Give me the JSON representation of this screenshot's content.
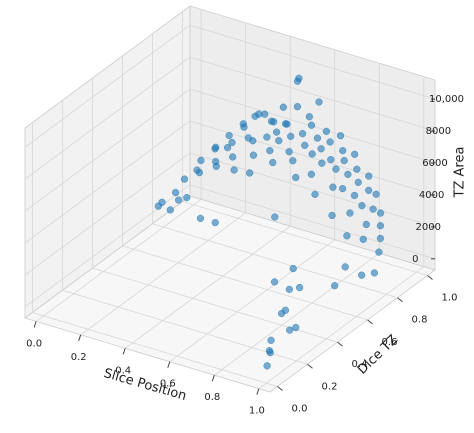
{
  "chart_data": {
    "type": "scatter3d",
    "xlabel": "Slice Position",
    "ylabel": "Dice TZ",
    "zlabel": "TZ Area",
    "color": "#1f77b4",
    "grid": true,
    "xlim": [
      -0.05,
      1.05
    ],
    "ylim": [
      -0.05,
      1.05
    ],
    "zlim": [
      -700,
      11200
    ],
    "xticks": [
      {
        "value": 0,
        "label": "0.0"
      },
      0.2,
      0.4,
      0.6,
      0.8,
      {
        "value": 1,
        "label": "1.0"
      }
    ],
    "yticks": [
      {
        "value": 0,
        "label": "0.0"
      },
      0.2,
      0.4,
      0.6,
      0.8,
      {
        "value": 1,
        "label": "1.0"
      }
    ],
    "zticks": [
      0,
      2000,
      4000,
      6000,
      8000,
      {
        "value": 10000,
        "label": "10,000"
      }
    ],
    "x": [
      0.02,
      0.03,
      0.05,
      0.08,
      0.1,
      0.12,
      0.15,
      0.15,
      0.18,
      0.2,
      0.22,
      0.24,
      0.25,
      0.27,
      0.28,
      0.3,
      0.31,
      0.33,
      0.34,
      0.35,
      0.36,
      0.38,
      0.39,
      0.4,
      0.41,
      0.42,
      0.43,
      0.44,
      0.45,
      0.46,
      0.47,
      0.48,
      0.49,
      0.5,
      0.5,
      0.51,
      0.52,
      0.53,
      0.54,
      0.55,
      0.56,
      0.57,
      0.58,
      0.59,
      0.6,
      0.61,
      0.62,
      0.63,
      0.64,
      0.65,
      0.66,
      0.67,
      0.68,
      0.69,
      0.7,
      0.71,
      0.72,
      0.73,
      0.74,
      0.75,
      0.76,
      0.77,
      0.78,
      0.79,
      0.8,
      0.81,
      0.82,
      0.83,
      0.84,
      0.85,
      0.86,
      0.87,
      0.88,
      0.89,
      0.9,
      0.91,
      0.92,
      0.93,
      0.94,
      0.95,
      0.96,
      0.97,
      0.98,
      0.99,
      1.0,
      0.85,
      0.9,
      0.92,
      0.95,
      0.98,
      0.88,
      0.8,
      0.93,
      0.97,
      0.75,
      0.7,
      0.99,
      0.0,
      0.01,
      0.06,
      0.3,
      0.4,
      0.6
    ],
    "y": [
      0.85,
      0.8,
      0.88,
      0.82,
      0.9,
      0.86,
      0.92,
      0.8,
      0.88,
      0.85,
      0.91,
      0.87,
      0.78,
      0.93,
      0.84,
      0.89,
      0.8,
      0.92,
      0.86,
      0.75,
      0.9,
      0.83,
      0.94,
      0.88,
      0.79,
      0.91,
      0.85,
      0.72,
      0.93,
      0.87,
      0.81,
      0.9,
      0.84,
      0.95,
      0.88,
      0.77,
      0.92,
      0.86,
      0.9,
      0.82,
      0.94,
      0.88,
      0.8,
      0.91,
      0.85,
      0.93,
      0.76,
      0.89,
      0.84,
      0.92,
      0.87,
      0.79,
      0.9,
      0.83,
      0.94,
      0.86,
      0.74,
      0.91,
      0.85,
      0.89,
      0.8,
      0.93,
      0.87,
      0.82,
      0.9,
      0.72,
      0.88,
      0.84,
      0.92,
      0.78,
      0.89,
      0.83,
      0.91,
      0.7,
      0.86,
      0.8,
      0.88,
      0.75,
      0.85,
      0.6,
      0.82,
      0.5,
      0.78,
      0.65,
      0.72,
      0.35,
      0.25,
      0.15,
      0.1,
      0.05,
      0.4,
      0.45,
      0.3,
      0.2,
      0.55,
      0.5,
      0.02,
      0.9,
      0.75,
      0.7,
      0.6,
      0.55,
      0.65
    ],
    "z": [
      1200,
      500,
      800,
      2500,
      3200,
      2800,
      4000,
      3500,
      4500,
      3900,
      5200,
      4800,
      4300,
      6000,
      5500,
      6200,
      5000,
      6800,
      5900,
      4700,
      7200,
      6100,
      6600,
      7500,
      5600,
      6900,
      6400,
      5100,
      7800,
      6700,
      6000,
      7100,
      6500,
      9500,
      7300,
      5700,
      8200,
      6800,
      10200,
      6200,
      7600,
      7000,
      5900,
      7400,
      6600,
      8800,
      5300,
      6900,
      6300,
      7200,
      6500,
      5500,
      6800,
      6000,
      7000,
      6100,
      4800,
      6400,
      5700,
      6000,
      5000,
      6200,
      5400,
      4900,
      5600,
      4000,
      5000,
      4500,
      5200,
      3900,
      4600,
      4100,
      4300,
      3200,
      3800,
      3300,
      3500,
      2800,
      3000,
      2200,
      2500,
      1800,
      2000,
      1500,
      1200,
      800,
      1500,
      600,
      300,
      900,
      2000,
      1200,
      400,
      1100,
      1600,
      900,
      200,
      300,
      1000,
      1800,
      2500,
      3000,
      3500
    ]
  }
}
